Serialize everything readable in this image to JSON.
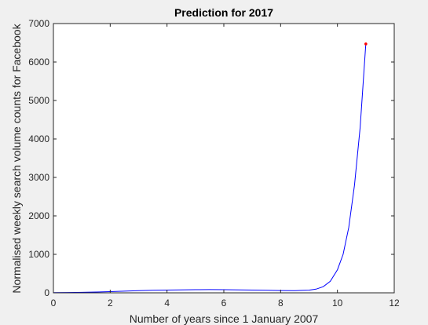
{
  "chart_data": {
    "type": "line",
    "title": "Prediction for 2017",
    "xlabel": "Number of years since 1 January 2007",
    "ylabel": "Normalised weekly search volume counts for Facebook",
    "xlim": [
      0,
      12
    ],
    "ylim": [
      0,
      7000
    ],
    "xticks": [
      "0",
      "2",
      "4",
      "6",
      "8",
      "10",
      "12"
    ],
    "yticks": [
      "0",
      "1000",
      "2000",
      "3000",
      "4000",
      "5000",
      "6000",
      "7000"
    ],
    "grid": false,
    "legend": "none",
    "series": [
      {
        "color": "#0000ff",
        "x": [
          0,
          0.5,
          1,
          1.5,
          2,
          2.5,
          3,
          3.5,
          4,
          4.5,
          5,
          5.5,
          6,
          6.5,
          7,
          7.5,
          8,
          8.5,
          9,
          9.25,
          9.5,
          9.75,
          10,
          10.2,
          10.4,
          10.6,
          10.8,
          11
        ],
        "y": [
          5,
          8,
          12,
          20,
          30,
          42,
          55,
          65,
          72,
          78,
          82,
          83,
          82,
          78,
          72,
          66,
          60,
          58,
          70,
          95,
          160,
          300,
          600,
          1000,
          1700,
          2800,
          4300,
          6470
        ]
      }
    ],
    "points": [
      {
        "x": 11,
        "y": 6470,
        "color": "#ff0000"
      }
    ]
  }
}
